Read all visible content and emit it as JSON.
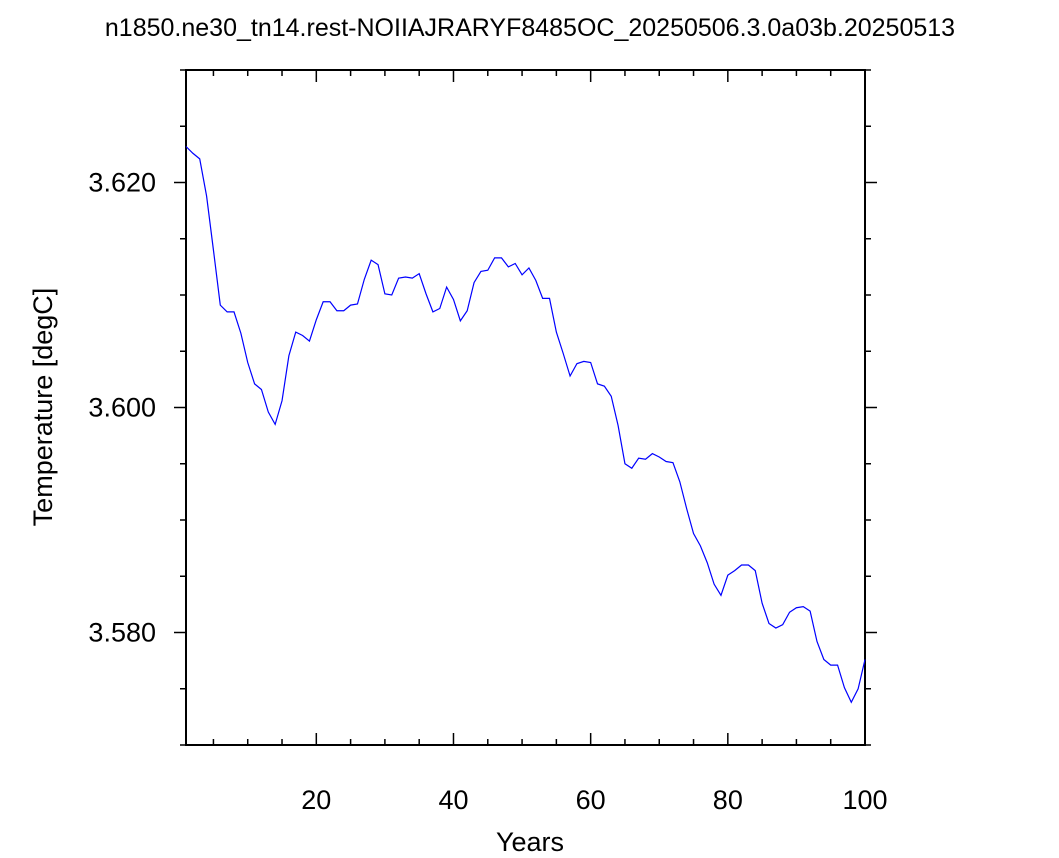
{
  "chart_data": {
    "type": "line",
    "title": "n1850.ne30_tn14.rest-NOIIAJRARYF8485OC_20250506.3.0a03b.20250513",
    "xlabel": "Years",
    "ylabel": "Temperature [degC]",
    "xlim": [
      1,
      100
    ],
    "ylim": [
      3.57,
      3.63
    ],
    "x_major_ticks": [
      20,
      40,
      60,
      80,
      100
    ],
    "x_tick_labels": [
      "20",
      "40",
      "60",
      "80",
      "100"
    ],
    "y_major_ticks": [
      3.58,
      3.6,
      3.62
    ],
    "y_tick_labels": [
      "3.580",
      "3.600",
      "3.620"
    ],
    "grid": false,
    "series": [
      {
        "color": "#0000ff",
        "x": [
          1,
          2,
          3,
          4,
          5,
          6,
          7,
          8,
          9,
          10,
          11,
          12,
          13,
          14,
          15,
          16,
          17,
          18,
          19,
          20,
          21,
          22,
          23,
          24,
          25,
          26,
          27,
          28,
          29,
          30,
          31,
          32,
          33,
          34,
          35,
          36,
          37,
          38,
          39,
          40,
          41,
          42,
          43,
          44,
          45,
          46,
          47,
          48,
          49,
          50,
          51,
          52,
          53,
          54,
          55,
          56,
          57,
          58,
          59,
          60,
          61,
          62,
          63,
          64,
          65,
          66,
          67,
          68,
          69,
          70,
          71,
          72,
          73,
          74,
          75,
          76,
          77,
          78,
          79,
          80,
          81,
          82,
          83,
          84,
          85,
          86,
          87,
          88,
          89,
          90,
          91,
          92,
          93,
          94,
          95,
          96,
          97,
          98,
          99,
          100
        ],
        "values": [
          3.6232,
          3.6226,
          3.6221,
          3.6188,
          3.614,
          3.6091,
          3.6085,
          3.6085,
          3.6066,
          3.604,
          3.6021,
          3.6016,
          3.5996,
          3.5985,
          3.6006,
          3.6046,
          3.6067,
          3.6064,
          3.6059,
          3.6078,
          3.6094,
          3.6094,
          3.6086,
          3.6086,
          3.6091,
          3.6092,
          3.6114,
          3.6131,
          3.6127,
          3.6101,
          3.61,
          3.6115,
          3.6116,
          3.6115,
          3.6119,
          3.6101,
          3.6085,
          3.6088,
          3.6107,
          3.6096,
          3.6077,
          3.6086,
          3.6111,
          3.6121,
          3.6122,
          3.6133,
          3.6133,
          3.6125,
          3.6128,
          3.6118,
          3.6124,
          3.6113,
          3.6097,
          3.6097,
          3.6067,
          3.6048,
          3.6028,
          3.6039,
          3.6041,
          3.604,
          3.6021,
          3.6019,
          3.601,
          3.5984,
          3.595,
          3.5946,
          3.5955,
          3.5954,
          3.5959,
          3.5956,
          3.5952,
          3.5951,
          3.5934,
          3.591,
          3.5888,
          3.5877,
          3.5862,
          3.5843,
          3.5833,
          3.5851,
          3.5855,
          3.586,
          3.586,
          3.5855,
          3.5826,
          3.5808,
          3.5804,
          3.5807,
          3.5818,
          3.5822,
          3.5823,
          3.5819,
          3.5792,
          3.5776,
          3.5771,
          3.5771,
          3.5751,
          3.5738,
          3.575,
          3.5776
        ]
      }
    ]
  }
}
